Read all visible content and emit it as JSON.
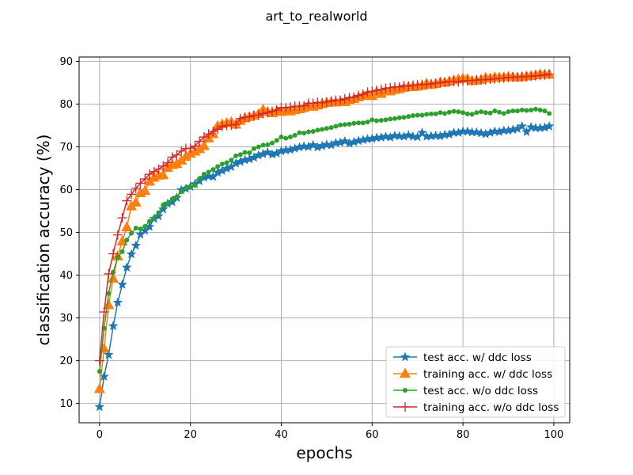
{
  "chart_data": {
    "type": "line",
    "title": "art_to_realworld",
    "xlabel": "epochs",
    "ylabel": "classification accuracy (%)",
    "xlim": [
      -4.5,
      103.5
    ],
    "ylim": [
      5.5,
      91.0
    ],
    "xticks": [
      0,
      20,
      40,
      60,
      80,
      100
    ],
    "yticks": [
      10,
      20,
      30,
      40,
      50,
      60,
      70,
      80,
      90
    ],
    "grid": true,
    "legend_position": "lower-right",
    "series": [
      {
        "name": "test acc. w/ ddc loss",
        "color": "#1f77b4",
        "marker": "star",
        "x": [
          0,
          1,
          2,
          3,
          4,
          5,
          6,
          7,
          8,
          9,
          10,
          11,
          12,
          13,
          14,
          15,
          16,
          17,
          18,
          19,
          20,
          21,
          22,
          23,
          24,
          25,
          26,
          27,
          28,
          29,
          30,
          31,
          32,
          33,
          34,
          35,
          36,
          37,
          38,
          39,
          40,
          41,
          42,
          43,
          44,
          45,
          46,
          47,
          48,
          49,
          50,
          51,
          52,
          53,
          54,
          55,
          56,
          57,
          58,
          59,
          60,
          61,
          62,
          63,
          64,
          65,
          66,
          67,
          68,
          69,
          70,
          71,
          72,
          73,
          74,
          75,
          76,
          77,
          78,
          79,
          80,
          81,
          82,
          83,
          84,
          85,
          86,
          87,
          88,
          89,
          90,
          91,
          92,
          93,
          94,
          95,
          96,
          97,
          98,
          99
        ],
        "values": [
          9.2,
          16.3,
          21.4,
          28.1,
          33.6,
          37.8,
          41.8,
          44.9,
          46.9,
          49.5,
          50.4,
          51.3,
          53.2,
          53.8,
          55.4,
          56.7,
          57.1,
          58.1,
          59.9,
          60.2,
          60.7,
          61.3,
          62.0,
          62.8,
          63.1,
          63.0,
          64.0,
          64.4,
          64.9,
          65.3,
          66.1,
          66.5,
          66.9,
          67.1,
          67.5,
          68.0,
          68.3,
          68.7,
          68.2,
          68.5,
          69.0,
          69.2,
          69.3,
          69.6,
          69.9,
          70.1,
          70.0,
          70.4,
          69.9,
          70.2,
          70.5,
          70.4,
          70.9,
          71.0,
          71.3,
          70.8,
          71.1,
          71.4,
          71.6,
          71.8,
          71.9,
          72.1,
          72.2,
          72.4,
          72.2,
          72.6,
          72.5,
          72.4,
          72.7,
          72.4,
          72.3,
          73.3,
          72.4,
          72.5,
          72.6,
          72.5,
          72.8,
          72.9,
          73.3,
          73.3,
          73.6,
          73.6,
          73.4,
          73.4,
          73.2,
          73.0,
          73.3,
          73.6,
          73.5,
          73.8,
          73.8,
          74.0,
          74.2,
          74.8,
          73.5,
          74.6,
          74.4,
          74.4,
          74.5,
          74.8
        ]
      },
      {
        "name": "training acc. w/ ddc loss",
        "color": "#ff7f0e",
        "marker": "triangle",
        "x": [
          0,
          1,
          2,
          3,
          4,
          5,
          6,
          7,
          8,
          9,
          10,
          11,
          12,
          13,
          14,
          15,
          16,
          17,
          18,
          19,
          20,
          21,
          22,
          23,
          24,
          25,
          26,
          27,
          28,
          29,
          30,
          31,
          32,
          33,
          34,
          35,
          36,
          37,
          38,
          39,
          40,
          41,
          42,
          43,
          44,
          45,
          46,
          47,
          48,
          49,
          50,
          51,
          52,
          53,
          54,
          55,
          56,
          57,
          58,
          59,
          60,
          61,
          62,
          63,
          64,
          65,
          66,
          67,
          68,
          69,
          70,
          71,
          72,
          73,
          74,
          75,
          76,
          77,
          78,
          79,
          80,
          81,
          82,
          83,
          84,
          85,
          86,
          87,
          88,
          89,
          90,
          91,
          92,
          93,
          94,
          95,
          96,
          97,
          98,
          99
        ],
        "values": [
          13.4,
          22.8,
          33.0,
          39.2,
          44.4,
          47.9,
          51.2,
          56.1,
          57.0,
          59.2,
          59.7,
          61.9,
          62.8,
          63.3,
          63.4,
          65.1,
          65.8,
          66.0,
          66.8,
          67.7,
          68.4,
          68.9,
          69.5,
          70.2,
          72.0,
          73.0,
          74.9,
          75.3,
          75.6,
          75.8,
          75.2,
          76.1,
          76.7,
          77.0,
          77.3,
          77.7,
          78.7,
          78.2,
          77.9,
          78.4,
          78.2,
          78.4,
          78.3,
          78.6,
          78.8,
          79.1,
          79.6,
          79.4,
          79.7,
          80.0,
          80.3,
          80.4,
          80.4,
          80.5,
          80.5,
          80.9,
          81.2,
          81.6,
          81.9,
          82.2,
          81.9,
          82.8,
          82.4,
          83.0,
          83.0,
          83.3,
          83.5,
          83.8,
          84.0,
          84.0,
          84.1,
          84.3,
          84.8,
          84.5,
          84.7,
          85.1,
          85.0,
          85.3,
          85.6,
          85.8,
          86.0,
          85.9,
          85.4,
          85.5,
          85.7,
          86.2,
          86.0,
          86.3,
          86.2,
          86.3,
          86.4,
          86.3,
          86.2,
          86.3,
          86.5,
          86.6,
          86.8,
          87.0,
          86.9,
          86.9
        ]
      },
      {
        "name": "test acc. w/o ddc loss",
        "color": "#2ca02c",
        "marker": "circle",
        "x": [
          0,
          1,
          2,
          3,
          4,
          5,
          6,
          7,
          8,
          9,
          10,
          11,
          12,
          13,
          14,
          15,
          16,
          17,
          18,
          19,
          20,
          21,
          22,
          23,
          24,
          25,
          26,
          27,
          28,
          29,
          30,
          31,
          32,
          33,
          34,
          35,
          36,
          37,
          38,
          39,
          40,
          41,
          42,
          43,
          44,
          45,
          46,
          47,
          48,
          49,
          50,
          51,
          52,
          53,
          54,
          55,
          56,
          57,
          58,
          59,
          60,
          61,
          62,
          63,
          64,
          65,
          66,
          67,
          68,
          69,
          70,
          71,
          72,
          73,
          74,
          75,
          76,
          77,
          78,
          79,
          80,
          81,
          82,
          83,
          84,
          85,
          86,
          87,
          88,
          89,
          90,
          91,
          92,
          93,
          94,
          95,
          96,
          97,
          98,
          99
        ],
        "values": [
          17.5,
          27.6,
          35.7,
          40.7,
          44.2,
          45.5,
          48.2,
          49.8,
          51.0,
          50.8,
          51.4,
          52.6,
          53.3,
          54.6,
          56.4,
          56.8,
          57.8,
          58.3,
          59.5,
          60.4,
          60.7,
          61.0,
          62.6,
          63.6,
          64.1,
          64.7,
          65.4,
          66.0,
          66.3,
          66.9,
          67.9,
          68.2,
          68.7,
          68.6,
          69.6,
          70.0,
          70.4,
          70.5,
          70.9,
          71.5,
          72.3,
          72.0,
          72.3,
          72.7,
          73.3,
          73.2,
          73.5,
          73.6,
          73.9,
          74.1,
          74.3,
          74.5,
          74.8,
          75.1,
          75.2,
          75.3,
          75.5,
          75.6,
          75.6,
          75.8,
          76.3,
          76.1,
          76.2,
          76.3,
          76.5,
          76.6,
          76.8,
          76.9,
          77.1,
          77.3,
          77.4,
          77.4,
          77.6,
          77.7,
          77.7,
          78.0,
          77.8,
          78.1,
          78.3,
          78.2,
          78.0,
          77.7,
          77.6,
          78.0,
          78.2,
          78.0,
          77.9,
          78.4,
          78.1,
          77.8,
          78.2,
          78.4,
          78.4,
          78.6,
          78.5,
          78.6,
          78.8,
          78.6,
          78.4,
          77.8
        ]
      },
      {
        "name": "training acc. w/o ddc loss",
        "color": "#d62728",
        "marker": "plus",
        "x": [
          0,
          1,
          2,
          3,
          4,
          5,
          6,
          7,
          8,
          9,
          10,
          11,
          12,
          13,
          14,
          15,
          16,
          17,
          18,
          19,
          20,
          21,
          22,
          23,
          24,
          25,
          26,
          27,
          28,
          29,
          30,
          31,
          32,
          33,
          34,
          35,
          36,
          37,
          38,
          39,
          40,
          41,
          42,
          43,
          44,
          45,
          46,
          47,
          48,
          49,
          50,
          51,
          52,
          53,
          54,
          55,
          56,
          57,
          58,
          59,
          60,
          61,
          62,
          63,
          64,
          65,
          66,
          67,
          68,
          69,
          70,
          71,
          72,
          73,
          74,
          75,
          76,
          77,
          78,
          79,
          80,
          81,
          82,
          83,
          84,
          85,
          86,
          87,
          88,
          89,
          90,
          91,
          92,
          93,
          94,
          95,
          96,
          97,
          98,
          99
        ],
        "values": [
          20.0,
          31.4,
          40.3,
          45.0,
          49.4,
          53.4,
          57.4,
          58.9,
          60.3,
          61.5,
          62.5,
          63.6,
          64.2,
          64.8,
          65.5,
          66.3,
          67.6,
          68.1,
          69.0,
          69.6,
          69.7,
          70.2,
          71.3,
          72.3,
          73.0,
          73.6,
          74.1,
          74.8,
          75.0,
          75.1,
          75.2,
          76.6,
          76.9,
          77.0,
          77.3,
          77.4,
          77.8,
          78.0,
          78.3,
          78.6,
          79.2,
          79.1,
          79.3,
          79.5,
          79.5,
          79.6,
          80.2,
          80.2,
          80.4,
          80.3,
          80.5,
          80.7,
          80.9,
          80.9,
          81.2,
          81.5,
          81.6,
          82.0,
          82.3,
          82.8,
          83.0,
          83.2,
          83.4,
          83.7,
          83.8,
          84.0,
          84.0,
          84.3,
          84.2,
          84.4,
          84.5,
          84.6,
          84.6,
          84.7,
          84.9,
          85.0,
          85.1,
          85.3,
          85.3,
          85.2,
          85.4,
          85.5,
          85.5,
          85.6,
          85.7,
          85.7,
          85.8,
          85.9,
          86.0,
          86.1,
          86.2,
          86.3,
          86.3,
          86.4,
          86.4,
          86.5,
          86.6,
          86.7,
          86.8,
          87.0
        ]
      }
    ]
  }
}
